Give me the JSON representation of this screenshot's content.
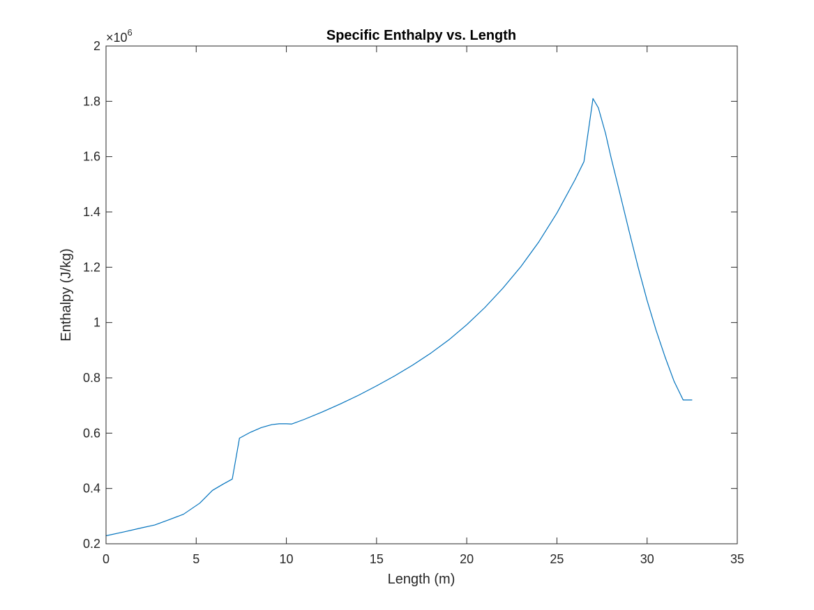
{
  "chart_data": {
    "type": "line",
    "title": "Specific Enthalpy vs. Length",
    "xlabel": "Length (m)",
    "ylabel": "Enthalpy (J/kg)",
    "xlim": [
      0,
      35
    ],
    "ylim": [
      200000,
      2000000
    ],
    "y_exponent_label": "×10",
    "y_exponent_power": "6",
    "x_ticks": [
      0,
      5,
      10,
      15,
      20,
      25,
      30,
      35
    ],
    "x_tick_labels": [
      "0",
      "5",
      "10",
      "15",
      "20",
      "25",
      "30",
      "35"
    ],
    "y_ticks": [
      200000,
      400000,
      600000,
      800000,
      1000000,
      1200000,
      1400000,
      1600000,
      1800000,
      2000000
    ],
    "y_tick_labels": [
      "0.2",
      "0.4",
      "0.6",
      "0.8",
      "1",
      "1.2",
      "1.4",
      "1.6",
      "1.8",
      "2"
    ],
    "grid": false,
    "line_color": "#0072bd",
    "series": [
      {
        "x": [
          0,
          1,
          2,
          2.7,
          3.5,
          4.3,
          5.2,
          5.9,
          6.5,
          7.0,
          7.4,
          8.0,
          8.6,
          9.2,
          9.6,
          10.0,
          10.3,
          11,
          12,
          13,
          14,
          15,
          16,
          17,
          18,
          19,
          20,
          21,
          22,
          23,
          24,
          25,
          26,
          26.5,
          27.0,
          27.3,
          27.7,
          28,
          28.5,
          29,
          29.5,
          30,
          30.5,
          31,
          31.5,
          32,
          32.5
        ],
        "y": [
          229000,
          243000,
          258000,
          268000,
          287000,
          307000,
          347000,
          393000,
          416000,
          434000,
          582000,
          603000,
          620000,
          631000,
          634000,
          634000,
          633000,
          650000,
          677000,
          706000,
          737000,
          771000,
          807000,
          846000,
          889000,
          937000,
          992000,
          1054000,
          1124000,
          1202000,
          1292000,
          1396000,
          1516000,
          1582000,
          1810000,
          1776000,
          1683000,
          1597000,
          1465000,
          1331000,
          1201000,
          1080000,
          972000,
          875000,
          787000,
          720000,
          720000
        ]
      }
    ]
  }
}
